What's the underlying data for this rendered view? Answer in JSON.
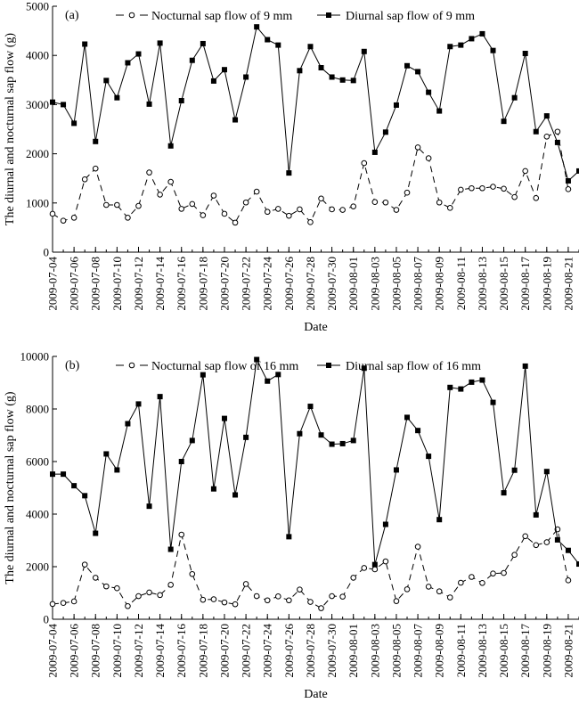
{
  "chart_data": [
    {
      "type": "line",
      "panel_label": "(a)",
      "xlabel": "Date",
      "ylabel": "The diurnal and nocturnal sap flow (g)",
      "ylim": [
        0,
        5000
      ],
      "yticks": [
        "0",
        "1000",
        "2000",
        "3000",
        "4000",
        "5000"
      ],
      "xticks": [
        "2009-07-04",
        "2009-07-06",
        "2009-07-08",
        "2009-07-10",
        "2009-07-12",
        "2009-07-14",
        "2009-07-16",
        "2009-07-18",
        "2009-07-20",
        "2009-07-22",
        "2009-07-24",
        "2009-07-26",
        "2009-07-28",
        "2009-07-30",
        "2009-08-01",
        "2009-08-03",
        "2009-08-05",
        "2009-08-07",
        "2009-08-09",
        "2009-08-11",
        "2009-08-13",
        "2009-08-15",
        "2009-08-17",
        "2009-08-19",
        "2009-08-21"
      ],
      "x_start": "2009-07-04",
      "x_end": "2009-08-22",
      "legend_position": "top-center",
      "series": [
        {
          "name": "Nocturnal sap flow of 9 mm",
          "marker": "open-circle",
          "line": "dashed",
          "values": [
            780,
            640,
            700,
            1480,
            1700,
            960,
            960,
            700,
            940,
            1620,
            1170,
            1430,
            880,
            980,
            750,
            1150,
            780,
            600,
            1010,
            1230,
            820,
            880,
            740,
            870,
            610,
            1090,
            870,
            860,
            930,
            1810,
            1020,
            1010,
            860,
            1210,
            2130,
            1910,
            1010,
            900,
            1270,
            1300,
            1300,
            1330,
            1290,
            1120,
            1650,
            1100,
            2350,
            2450,
            1280
          ]
        },
        {
          "name": "Diurnal sap flow of 9 mm",
          "marker": "filled-square",
          "line": "solid",
          "values": [
            3050,
            3000,
            2620,
            4230,
            2250,
            3490,
            3140,
            3850,
            4030,
            3010,
            4250,
            2160,
            3080,
            3900,
            4240,
            3480,
            3710,
            2690,
            3560,
            4580,
            4320,
            4210,
            1610,
            3690,
            4180,
            3750,
            3560,
            3500,
            3490,
            4080,
            2030,
            2440,
            2990,
            3790,
            3670,
            3250,
            2870,
            4180,
            4210,
            4340,
            4440,
            4100,
            2660,
            3140,
            4040,
            2450,
            2770,
            2230,
            1450,
            1650
          ]
        }
      ]
    },
    {
      "type": "line",
      "panel_label": "(b)",
      "xlabel": "Date",
      "ylabel": "The diurnal and nocturnal sap flow (g)",
      "ylim": [
        0,
        10000
      ],
      "yticks": [
        "0",
        "2000",
        "4000",
        "6000",
        "8000",
        "10000"
      ],
      "xticks": [
        "2009-07-04",
        "2009-07-06",
        "2009-07-08",
        "2009-07-10",
        "2009-07-12",
        "2009-07-14",
        "2009-07-16",
        "2009-07-18",
        "2009-07-20",
        "2009-07-22",
        "2009-07-24",
        "2009-07-26",
        "2009-07-28",
        "2009-07-30",
        "2009-08-01",
        "2009-08-03",
        "2009-08-05",
        "2009-08-07",
        "2009-08-09",
        "2009-08-11",
        "2009-08-13",
        "2009-08-15",
        "2009-08-17",
        "2009-08-19",
        "2009-08-21"
      ],
      "x_start": "2009-07-04",
      "x_end": "2009-08-22",
      "legend_position": "top-center",
      "series": [
        {
          "name": "Nocturnal sap flow of 16 mm",
          "marker": "open-circle",
          "line": "dashed",
          "values": [
            580,
            620,
            680,
            2080,
            1580,
            1250,
            1180,
            500,
            880,
            1020,
            920,
            1310,
            3220,
            1720,
            740,
            760,
            640,
            570,
            1340,
            880,
            720,
            870,
            720,
            1130,
            660,
            420,
            880,
            860,
            1580,
            1950,
            1900,
            2200,
            690,
            1140,
            2760,
            1240,
            1060,
            830,
            1390,
            1610,
            1380,
            1740,
            1760,
            2450,
            3160,
            2820,
            2930,
            3420,
            1480
          ]
        },
        {
          "name": "Diurnal sap flow of 16 mm",
          "marker": "filled-square",
          "line": "solid",
          "values": [
            5520,
            5520,
            5080,
            4700,
            3270,
            6290,
            5680,
            7440,
            8190,
            4300,
            8470,
            2660,
            6000,
            6800,
            9300,
            4960,
            7640,
            4730,
            6920,
            9880,
            9060,
            9310,
            3140,
            7060,
            8100,
            7010,
            6660,
            6680,
            6800,
            9550,
            2080,
            3610,
            5680,
            7680,
            7180,
            6200,
            3790,
            8820,
            8760,
            9020,
            9100,
            8250,
            4810,
            5670,
            9630,
            3970,
            5620,
            3020,
            2620,
            2100
          ]
        }
      ]
    }
  ]
}
